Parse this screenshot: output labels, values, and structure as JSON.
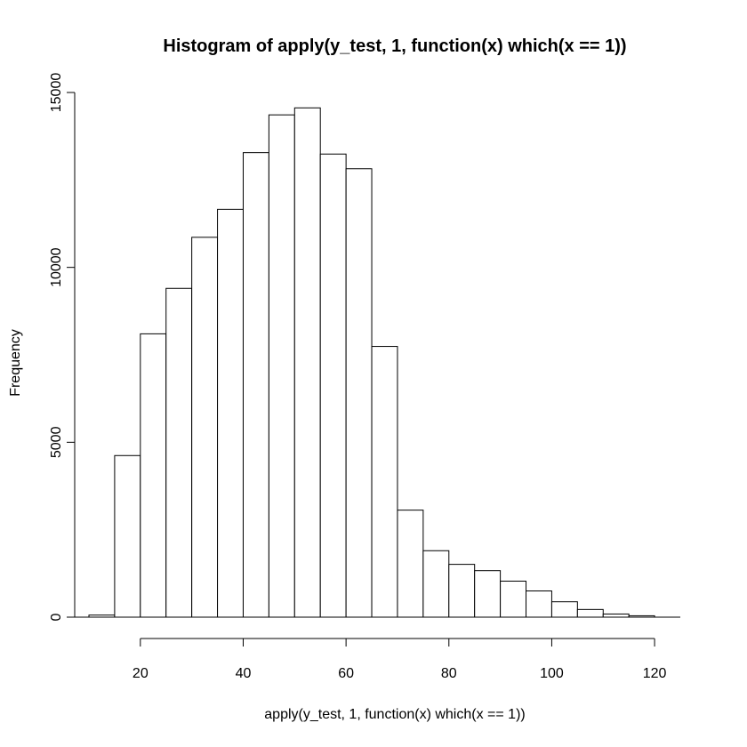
{
  "chart_data": {
    "type": "bar",
    "title": "Histogram of apply(y_test, 1, function(x) which(x == 1))",
    "xlabel": "apply(y_test, 1, function(x) which(x == 1))",
    "ylabel": "Frequency",
    "bin_edges": [
      10,
      15,
      20,
      25,
      30,
      35,
      40,
      45,
      50,
      55,
      60,
      65,
      70,
      75,
      80,
      85,
      90,
      95,
      100,
      105,
      110,
      115,
      120
    ],
    "values": [
      60,
      4620,
      8100,
      9400,
      10860,
      11660,
      13280,
      14360,
      14560,
      13240,
      12820,
      7740,
      3060,
      1900,
      1510,
      1330,
      1030,
      750,
      440,
      220,
      90,
      40
    ],
    "xlim": [
      10,
      122
    ],
    "ylim": [
      0,
      15000
    ],
    "xticks": [
      20,
      40,
      60,
      80,
      100,
      120
    ],
    "yticks": [
      0,
      5000,
      10000,
      15000
    ],
    "grid": false,
    "bar_fill": "#ffffff",
    "bar_stroke": "#000000"
  }
}
